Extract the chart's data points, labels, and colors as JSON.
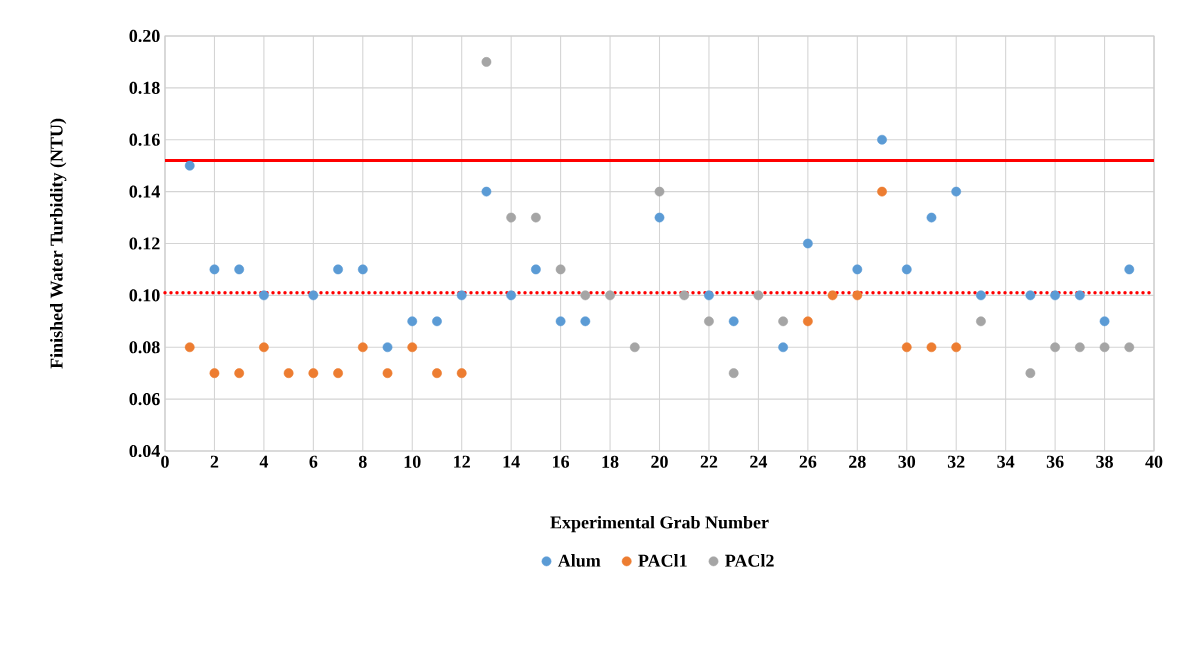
{
  "chart_data": {
    "type": "scatter",
    "xlabel": "Experimental Grab Number",
    "ylabel": "Finished Water Turbidity (NTU)",
    "x": [
      1,
      2,
      3,
      4,
      5,
      6,
      7,
      8,
      9,
      10,
      11,
      12,
      13,
      14,
      15,
      16,
      17,
      18,
      19,
      20,
      21,
      22,
      23,
      24,
      25,
      26,
      27,
      28,
      29,
      30,
      31,
      32,
      33,
      34,
      35,
      36,
      37,
      38,
      39
    ],
    "series": [
      {
        "name": "Alum",
        "color": "#5b9bd5",
        "values": [
          0.15,
          0.11,
          0.11,
          0.1,
          null,
          0.1,
          0.11,
          0.11,
          0.08,
          0.09,
          0.09,
          0.1,
          0.14,
          0.1,
          0.11,
          0.09,
          0.09,
          null,
          null,
          0.13,
          null,
          0.1,
          0.09,
          null,
          0.08,
          0.12,
          null,
          0.11,
          0.16,
          0.11,
          0.13,
          0.14,
          0.1,
          null,
          0.1,
          0.1,
          0.1,
          0.09,
          0.11
        ]
      },
      {
        "name": "PACl1",
        "color": "#ed7d31",
        "values": [
          0.08,
          0.07,
          0.07,
          0.08,
          0.07,
          0.07,
          0.07,
          0.08,
          0.07,
          0.08,
          0.07,
          0.07,
          null,
          null,
          null,
          null,
          null,
          null,
          null,
          null,
          null,
          null,
          null,
          null,
          null,
          0.09,
          0.1,
          0.1,
          0.14,
          0.08,
          0.08,
          0.08,
          null,
          null,
          null,
          null,
          null,
          null,
          null
        ]
      },
      {
        "name": "PACl2",
        "color": "#a5a5a5",
        "values": [
          null,
          null,
          null,
          null,
          null,
          null,
          null,
          null,
          null,
          null,
          null,
          null,
          0.19,
          0.13,
          0.13,
          0.11,
          0.1,
          0.1,
          0.08,
          0.14,
          0.1,
          0.09,
          0.07,
          0.1,
          0.09,
          null,
          null,
          null,
          null,
          null,
          null,
          null,
          0.09,
          null,
          0.07,
          0.08,
          0.08,
          0.08,
          0.08
        ]
      }
    ],
    "xlim": [
      0,
      40
    ],
    "xticks": [
      0,
      2,
      4,
      6,
      8,
      10,
      12,
      14,
      16,
      18,
      20,
      22,
      24,
      26,
      28,
      30,
      32,
      34,
      36,
      38,
      40
    ],
    "ylim": [
      0.04,
      0.2
    ],
    "yticks": [
      {
        "value": 0.04,
        "label": "0.04"
      },
      {
        "value": 0.06,
        "label": "0.06"
      },
      {
        "value": 0.08,
        "label": "0.08"
      },
      {
        "value": 0.1,
        "label": "0.10"
      },
      {
        "value": 0.12,
        "label": "0.12"
      },
      {
        "value": 0.14,
        "label": "0.14"
      },
      {
        "value": 0.16,
        "label": "0.16"
      },
      {
        "value": 0.18,
        "label": "0.18"
      },
      {
        "value": 0.2,
        "label": "0.20"
      }
    ],
    "ref_lines": [
      {
        "axis": "y",
        "value": 0.152,
        "color": "#ff0000",
        "line_style": "solid"
      },
      {
        "axis": "y",
        "value": 0.101,
        "color": "#ff0000",
        "line_style": "dotted"
      }
    ],
    "grid": true,
    "legend": "bottom",
    "marker": "circle"
  }
}
